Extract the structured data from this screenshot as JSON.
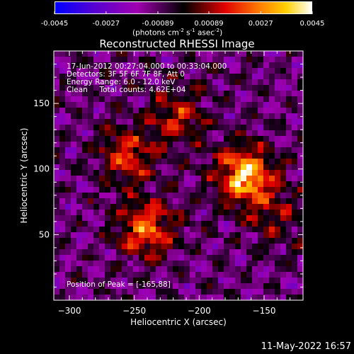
{
  "chart_data": {
    "type": "heatmap",
    "title": "Reconstructed RHESSI Image",
    "xlabel": "Heliocentric X (arcsec)",
    "ylabel": "Heliocentric Y (arcsec)",
    "xlim": [
      -312,
      -120
    ],
    "ylim": [
      0,
      190
    ],
    "x_ticks": [
      -300,
      -250,
      -200,
      -150
    ],
    "y_ticks": [
      50,
      100,
      150
    ],
    "colorbar": {
      "ticks": [
        "-0.0045",
        "-0.0027",
        "-0.00089",
        "0.00089",
        "0.0027",
        "0.0045"
      ],
      "range": [
        -0.0045,
        0.0045
      ],
      "unit_main": "(photons cm",
      "unit_e1": "-2",
      "unit_mid": " s",
      "unit_e2": "-1",
      "unit_end": " asec",
      "unit_e3": "-2",
      "unit_close": ")"
    },
    "info_lines": [
      "17-Jun-2012 00:27:04.000 to 00:33:04.000",
      "Detectors: 3F 5F 6F 7F 8F, Att 0",
      "Energy Range: 6.0 - 12.0 keV",
      "Clean     Total counts: 4.62E+04"
    ],
    "peak_label": "Position of Peak = [-165,88]",
    "peak": [
      -165,
      88
    ],
    "sources": [
      {
        "x": -165,
        "y": 95,
        "intensity": 0.0045
      },
      {
        "x": -240,
        "y": 55,
        "intensity": 0.0032
      },
      {
        "x": -255,
        "y": 110,
        "intensity": 0.0026
      },
      {
        "x": -215,
        "y": 140,
        "intensity": 0.0022
      },
      {
        "x": -140,
        "y": 65,
        "intensity": 0.0015
      }
    ]
  },
  "footer": {
    "timestamp": "11-May-2022 16:57"
  }
}
